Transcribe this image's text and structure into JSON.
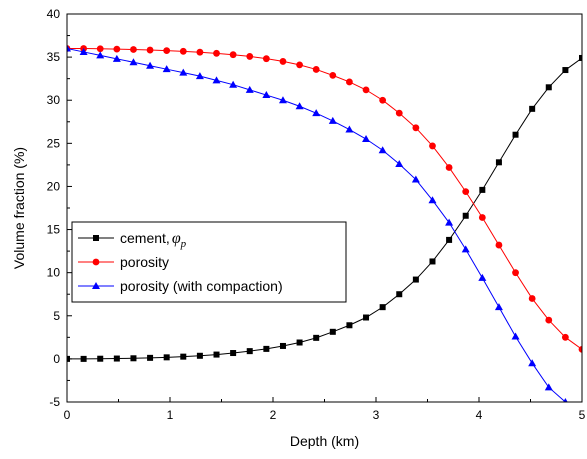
{
  "chart_data": {
    "type": "line",
    "xlabel": "Depth (km)",
    "ylabel": "Volume fraction (%)",
    "xlim": [
      0,
      5
    ],
    "ylim": [
      -5,
      40
    ],
    "xticks": [
      0,
      1,
      2,
      3,
      4,
      5
    ],
    "yticks": [
      -5,
      0,
      5,
      10,
      15,
      20,
      25,
      30,
      35,
      40
    ],
    "grid": false,
    "legend_position": "center-left",
    "x": [
      0,
      0.1613,
      0.3226,
      0.4839,
      0.6452,
      0.8065,
      0.9677,
      1.129,
      1.2903,
      1.4516,
      1.6129,
      1.7742,
      1.9355,
      2.0968,
      2.2581,
      2.4194,
      2.5806,
      2.7419,
      2.9032,
      3.0645,
      3.2258,
      3.3871,
      3.5484,
      3.7097,
      3.871,
      4.0323,
      4.1935,
      4.3548,
      4.5161,
      4.6774,
      4.8387,
      5.0
    ],
    "series": [
      {
        "name": "cement, ",
        "symbol": "φ",
        "symbol_sub": "p",
        "color": "#000000",
        "marker": "square",
        "values": [
          0.0,
          0.0,
          0.02,
          0.04,
          0.07,
          0.12,
          0.18,
          0.26,
          0.36,
          0.5,
          0.68,
          0.9,
          1.16,
          1.5,
          1.9,
          2.44,
          3.14,
          3.9,
          4.8,
          6.0,
          7.5,
          9.2,
          11.3,
          13.8,
          16.6,
          19.6,
          22.8,
          26.0,
          29.0,
          31.5,
          33.5,
          34.9
        ]
      },
      {
        "name": "porosity",
        "color": "#ff0000",
        "marker": "circle",
        "values": [
          36.0,
          36.0,
          35.97,
          35.93,
          35.88,
          35.82,
          35.75,
          35.67,
          35.57,
          35.44,
          35.28,
          35.08,
          34.82,
          34.5,
          34.1,
          33.57,
          32.88,
          32.12,
          31.2,
          30.0,
          28.5,
          26.8,
          24.7,
          22.2,
          19.4,
          16.4,
          13.2,
          10.0,
          7.0,
          4.5,
          2.5,
          1.1
        ]
      },
      {
        "name": "porosity (with compaction)",
        "color": "#0000ff",
        "marker": "triangle",
        "values": [
          36.0,
          35.6,
          35.2,
          34.8,
          34.4,
          34.0,
          33.6,
          33.2,
          32.8,
          32.3,
          31.8,
          31.2,
          30.6,
          30.0,
          29.3,
          28.5,
          27.6,
          26.6,
          25.5,
          24.2,
          22.6,
          20.8,
          18.4,
          15.8,
          12.7,
          9.4,
          6.0,
          2.6,
          -0.5,
          -3.3,
          -5.0,
          null
        ]
      }
    ]
  }
}
